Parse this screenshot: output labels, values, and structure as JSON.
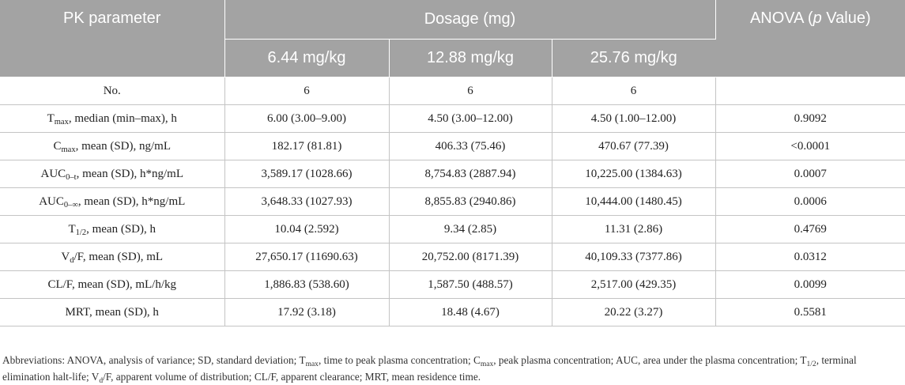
{
  "table": {
    "headers": {
      "pk_parameter": "PK parameter",
      "dosage": "Dosage (mg)",
      "anova_pre": "ANOVA (",
      "anova_p": "p",
      "anova_post": " Value)",
      "dose_1": "6.44 mg/kg",
      "dose_2": "12.88 mg/kg",
      "dose_3": "25.76 mg/kg"
    },
    "rows": [
      {
        "p_main": "No.",
        "p_sub": "",
        "p_rest": "",
        "d1": "6",
        "d2": "6",
        "d3": "6",
        "anova": ""
      },
      {
        "p_main": "T",
        "p_sub": "max",
        "p_rest": ", median (min–max), h",
        "d1": "6.00 (3.00–9.00)",
        "d2": "4.50 (3.00–12.00)",
        "d3": "4.50 (1.00–12.00)",
        "anova": "0.9092"
      },
      {
        "p_main": "C",
        "p_sub": "max",
        "p_rest": ", mean (SD), ng/mL",
        "d1": "182.17 (81.81)",
        "d2": "406.33 (75.46)",
        "d3": "470.67 (77.39)",
        "anova": "<0.0001"
      },
      {
        "p_main": "AUC",
        "p_sub": "0–t",
        "p_rest": ", mean (SD), h*ng/mL",
        "d1": "3,589.17 (1028.66)",
        "d2": "8,754.83 (2887.94)",
        "d3": "10,225.00 (1384.63)",
        "anova": "0.0007"
      },
      {
        "p_main": "AUC",
        "p_sub": "0–∞",
        "p_rest": ", mean (SD), h*ng/mL",
        "d1": "3,648.33 (1027.93)",
        "d2": "8,855.83 (2940.86)",
        "d3": "10,444.00 (1480.45)",
        "anova": "0.0006"
      },
      {
        "p_main": "T",
        "p_sub": "1/2",
        "p_rest": ", mean (SD), h",
        "d1": "10.04 (2.592)",
        "d2": "9.34 (2.85)",
        "d3": "11.31 (2.86)",
        "anova": "0.4769"
      },
      {
        "p_main": "V",
        "p_sub": "d",
        "p_rest": "/F, mean (SD), mL",
        "d1": "27,650.17 (11690.63)",
        "d2": "20,752.00 (8171.39)",
        "d3": "40,109.33 (7377.86)",
        "anova": "0.0312"
      },
      {
        "p_main": "CL/F, mean (SD), mL/h/kg",
        "p_sub": "",
        "p_rest": "",
        "d1": "1,886.83 (538.60)",
        "d2": "1,587.50 (488.57)",
        "d3": "2,517.00 (429.35)",
        "anova": "0.0099"
      },
      {
        "p_main": "MRT, mean (SD), h",
        "p_sub": "",
        "p_rest": "",
        "d1": "17.92 (3.18)",
        "d2": "18.48 (4.67)",
        "d3": "20.22 (3.27)",
        "anova": "0.5581"
      }
    ]
  },
  "footnote": {
    "t1": "Abbreviations: ANOVA, analysis of variance; SD, standard deviation; T",
    "s1": "max",
    "t2": ", time to peak plasma concentration; C",
    "s2": "max",
    "t3": ", peak plasma concentration; AUC, area under the plasma concentration; T",
    "s3": "1/2",
    "t4": ", terminal elimination halt-life; V",
    "s4": "d",
    "t5": "/F, apparent volume of distribution; CL/F, apparent clearance; MRT, mean residence time."
  }
}
